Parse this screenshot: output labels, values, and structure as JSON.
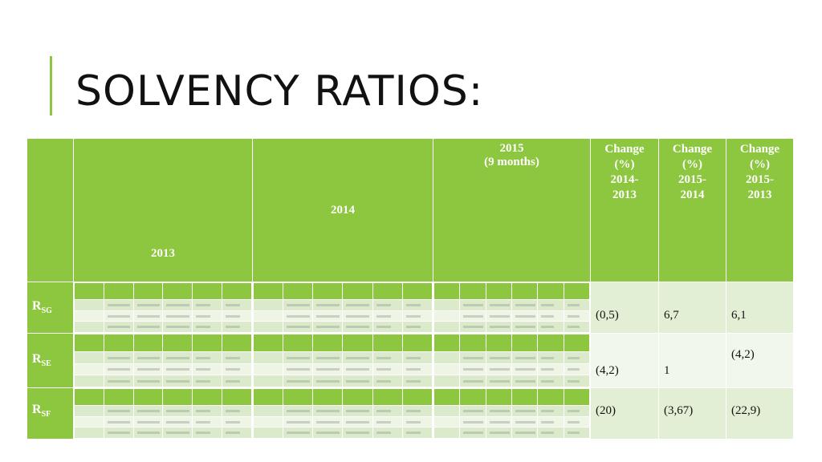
{
  "title": "SOLVENCY RATIOS:",
  "table": {
    "headers": {
      "y2013": "2013",
      "y2014": "2014",
      "y2015": "2015",
      "y2015_note": "(9 months)",
      "chg1": [
        "Change",
        "(%)",
        "2014-",
        "2013"
      ],
      "chg2": [
        "Change",
        "(%)",
        "2015-",
        "2014"
      ],
      "chg3": [
        "Change",
        "(%)",
        "2015-",
        "2013"
      ]
    },
    "rows": [
      {
        "label": "R",
        "sub": "SG",
        "c1": "(0,5)",
        "c2": "6,7",
        "c3": "6,1"
      },
      {
        "label": "R",
        "sub": "SE",
        "c1": "(4,2)",
        "c2": "1",
        "c3": "(4,2)"
      },
      {
        "label": "R",
        "sub": "SF",
        "c1": "(20)",
        "c2": "(3,67)",
        "c3": "(22,9)"
      }
    ]
  },
  "colors": {
    "accent": "#8dc63f",
    "row_light": "#e3efd5",
    "row_pale": "#f1f7ea"
  }
}
